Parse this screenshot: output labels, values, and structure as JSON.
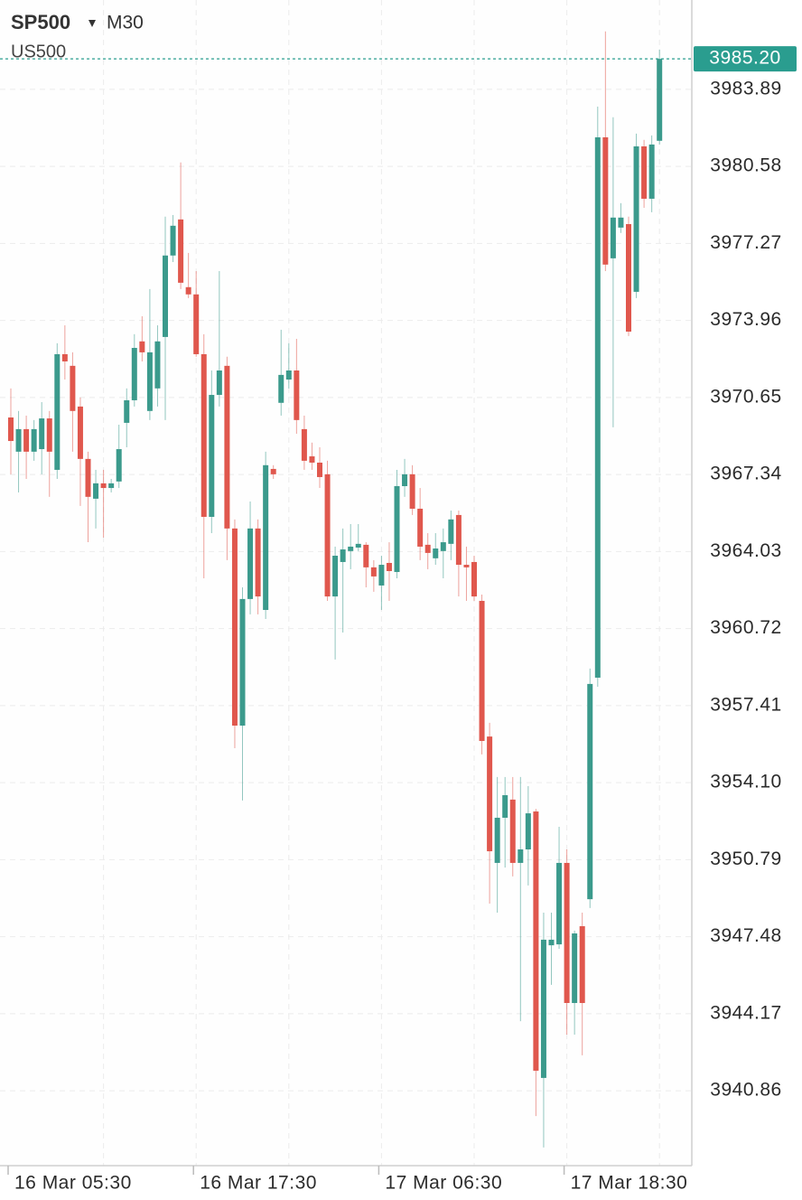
{
  "chart_data": {
    "type": "candlestick",
    "symbol": "SP500",
    "timeframe": "M30",
    "subtitle": "US500",
    "up_color": "#3b9a8c",
    "down_color": "#e0574d",
    "current_price": {
      "value": 3985.2,
      "label": "3985.20"
    },
    "current_price_color": "#2a9d8f",
    "grid": true,
    "ylim": [
      3937.64,
      3987.73
    ],
    "yticks": [
      3983.89,
      3980.58,
      3977.27,
      3973.96,
      3970.65,
      3967.34,
      3964.03,
      3960.72,
      3957.41,
      {
        "value": 3954.1,
        "label": "3954.10"
      },
      3950.79,
      3947.48,
      3944.17,
      3940.86
    ],
    "categories": [
      "16 Mar 05:30",
      null,
      null,
      null,
      null,
      null,
      null,
      null,
      null,
      null,
      null,
      null,
      null,
      null,
      null,
      null,
      null,
      null,
      null,
      null,
      null,
      null,
      null,
      null,
      "16 Mar 17:30",
      null,
      null,
      null,
      null,
      null,
      null,
      null,
      null,
      null,
      null,
      null,
      null,
      null,
      null,
      null,
      null,
      null,
      null,
      null,
      null,
      null,
      null,
      null,
      "17 Mar 06:30",
      null,
      null,
      null,
      null,
      null,
      null,
      null,
      null,
      null,
      null,
      null,
      null,
      null,
      null,
      null,
      null,
      null,
      null,
      null,
      null,
      null,
      null,
      null,
      "17 Mar 18:30",
      null,
      null,
      null,
      null,
      null,
      null,
      null,
      null,
      null,
      null,
      null,
      null
    ],
    "open": [
      3969.79,
      3968.32,
      3969.29,
      3968.32,
      3968.43,
      3969.75,
      3967.54,
      3972.51,
      3972.01,
      3970.26,
      3968.01,
      3966.3,
      3966.96,
      3966.76,
      3967.04,
      3969.56,
      3970.53,
      3973.06,
      3970.07,
      3971.04,
      3973.25,
      3976.75,
      3978.3,
      3975.39,
      3975.08,
      3972.51,
      3965.52,
      3970.76,
      3972.01,
      3965.02,
      3956.55,
      3961.99,
      3965.02,
      3961.52,
      3967.58,
      3970.42,
      3971.42,
      3971.81,
      3969.29,
      3968.12,
      3967.85,
      3967.35,
      3962.1,
      3963.58,
      3964.05,
      3964.2,
      3964.32,
      3963.35,
      3962.57,
      3963.54,
      3963.15,
      3966.84,
      3967.35,
      3965.87,
      3964.32,
      3963.74,
      3964.05,
      3964.36,
      3965.6,
      3963.46,
      3963.58,
      3961.91,
      3956.08,
      3950.65,
      3952.59,
      3953.37,
      3950.65,
      3951.23,
      3952.86,
      3941.41,
      3947.11,
      3947.15,
      3950.65,
      3944.63,
      3947.93,
      3949.09,
      3958.61,
      3981.83,
      3976.63,
      3977.95,
      3978.1,
      3975.19,
      3981.44,
      3979.19,
      3981.68
    ],
    "high": [
      3971.04,
      3970.07,
      3969.87,
      3969.68,
      3970.45,
      3970.07,
      3972.98,
      3973.75,
      3972.59,
      3970.65,
      3968.32,
      3967.54,
      3967.54,
      3967.15,
      3969.48,
      3971.04,
      3973.37,
      3974.14,
      3975.31,
      3973.75,
      3978.42,
      3978.49,
      3980.75,
      3976.86,
      3976.08,
      3973.37,
      3971.81,
      3976.08,
      3972.4,
      3965.41,
      3962.49,
      3966.18,
      3965.41,
      3968.32,
      3967.74,
      3973.56,
      3972.98,
      3973.17,
      3969.87,
      3968.71,
      3968.51,
      3967.93,
      3964.24,
      3965.02,
      3965.21,
      3965.21,
      3964.43,
      3963.66,
      3963.85,
      3964.43,
      3967.54,
      3968.01,
      3967.74,
      3966.76,
      3964.82,
      3964.82,
      3965.02,
      3965.79,
      3965.79,
      3964.24,
      3963.85,
      3962.18,
      3956.67,
      3954.34,
      3954.34,
      3954.34,
      3954.34,
      3953.95,
      3952.97,
      3948.51,
      3948.51,
      3952.2,
      3951.23,
      3947.74,
      3948.51,
      3959.0,
      3983.15,
      3986.38,
      3982.69,
      3979.0,
      3978.42,
      3981.99,
      3981.72,
      3981.91,
      3985.6
    ],
    "low": [
      3967.35,
      3966.57,
      3967.15,
      3967.93,
      3967.35,
      3966.38,
      3967.15,
      3971.42,
      3968.32,
      3965.99,
      3964.43,
      3965.02,
      3964.63,
      3966.57,
      3966.76,
      3968.51,
      3970.26,
      3972.2,
      3969.68,
      3970.26,
      3969.68,
      3976.47,
      3975.31,
      3974.92,
      3972.4,
      3962.88,
      3964.82,
      3970.26,
      3963.66,
      3955.58,
      3953.33,
      3961.33,
      3961.33,
      3961.13,
      3967.15,
      3969.87,
      3971.04,
      3969.09,
      3967.54,
      3967.54,
      3966.76,
      3961.91,
      3959.39,
      3960.55,
      3963.27,
      3964.05,
      3962.49,
      3962.3,
      3961.52,
      3961.91,
      3962.88,
      3966.38,
      3965.6,
      3963.66,
      3963.27,
      3963.46,
      3962.88,
      3963.66,
      3962.1,
      3961.91,
      3961.91,
      3955.31,
      3948.9,
      3948.51,
      3950.45,
      3950.07,
      3943.85,
      3949.68,
      3939.77,
      3938.42,
      3945.41,
      3946.96,
      3943.27,
      3943.27,
      3942.38,
      3948.71,
      3958.22,
      3976.08,
      3969.37,
      3977.72,
      3973.29,
      3974.92,
      3978.8,
      3978.61,
      3981.52
    ],
    "close": [
      3968.78,
      3969.29,
      3968.32,
      3969.29,
      3969.75,
      3968.32,
      3972.51,
      3972.2,
      3970.07,
      3968.01,
      3966.38,
      3966.96,
      3966.76,
      3966.96,
      3968.43,
      3970.53,
      3972.78,
      3972.59,
      3972.59,
      3973.06,
      3976.75,
      3978.03,
      3975.58,
      3975.08,
      3972.51,
      3965.52,
      3970.76,
      3971.81,
      3965.02,
      3956.55,
      3961.99,
      3965.02,
      3962.1,
      3967.74,
      3967.35,
      3971.62,
      3971.81,
      3969.68,
      3967.93,
      3967.85,
      3967.23,
      3962.1,
      3963.85,
      3964.12,
      3964.24,
      3964.36,
      3963.35,
      3962.96,
      3963.46,
      3963.19,
      3966.84,
      3967.35,
      3965.87,
      3964.24,
      3963.97,
      3964.16,
      3964.43,
      3965.41,
      3963.46,
      3963.35,
      3962.1,
      3955.89,
      3951.15,
      3952.59,
      3953.56,
      3950.65,
      3951.23,
      3952.78,
      3941.72,
      3947.35,
      3947.35,
      3950.65,
      3944.63,
      3947.62,
      3944.63,
      3958.34,
      3981.83,
      3976.36,
      3978.38,
      3978.38,
      3973.48,
      3981.44,
      3979.19,
      3981.52,
      3985.2
    ]
  }
}
